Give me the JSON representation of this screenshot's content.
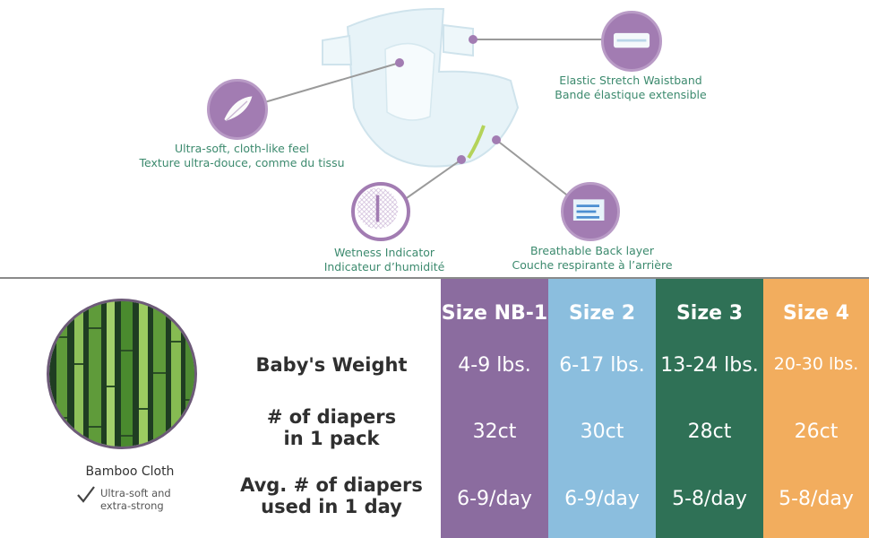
{
  "features": {
    "waistband": {
      "line1": "Elastic Stretch Waistband",
      "line2": "Bande élastique extensible",
      "icon": "waistband-icon"
    },
    "soft": {
      "line1": "Ultra-soft, cloth-like feel",
      "line2": "Texture ultra-douce, comme du tissu",
      "icon": "feather-icon"
    },
    "wetness": {
      "line1": "Wetness Indicator",
      "line2": "Indicateur d’humidité",
      "icon": "wetness-indicator-icon"
    },
    "breathable": {
      "line1": "Breathable Back layer",
      "line2": "Couche respirante à l’arrière",
      "icon": "breathable-layer-icon"
    }
  },
  "bamboo": {
    "title": "Bamboo Cloth",
    "desc_line1": "Ultra-soft and",
    "desc_line2": "extra-strong"
  },
  "table": {
    "row_labels": {
      "weight": "Baby's Weight",
      "count_line1": "# of diapers",
      "count_line2": "in 1 pack",
      "usage_line1": "Avg. # of diapers",
      "usage_line2": "used in 1 day"
    },
    "sizes": [
      {
        "name": "Size NB-1",
        "weight": "4-9 lbs.",
        "count": "32ct",
        "per_day": "6-9/day",
        "color": "#8b6c9f"
      },
      {
        "name": "Size 2",
        "weight": "6-17 lbs.",
        "count": "30ct",
        "per_day": "6-9/day",
        "color": "#8bbede"
      },
      {
        "name": "Size 3",
        "weight": "13-24 lbs.",
        "count": "28ct",
        "per_day": "5-8/day",
        "color": "#2f7156"
      },
      {
        "name": "Size 4",
        "weight": "20-30 lbs.",
        "count": "26ct",
        "per_day": "5-8/day",
        "color": "#f2ad5e"
      }
    ]
  }
}
